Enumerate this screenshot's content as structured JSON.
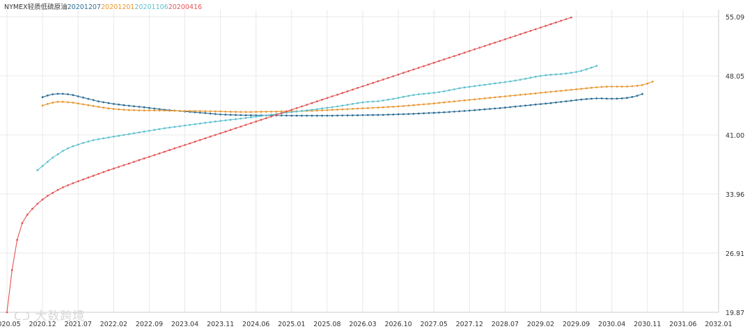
{
  "chart_data": {
    "type": "line",
    "title": "NYMEX轻质低硫原油",
    "ylim": [
      19.87,
      55.09
    ],
    "y_ticks": [
      "55.09",
      "48.05",
      "41.00",
      "33.96",
      "26.91",
      "19.87"
    ],
    "x_tick_labels": [
      "2020.05",
      "2020.12",
      "2021.07",
      "2022.02",
      "2022.09",
      "2023.04",
      "2023.11",
      "2024.06",
      "2025.01",
      "2025.08",
      "2026.03",
      "2026.10",
      "2027.05",
      "2027.12",
      "2028.07",
      "2029.02",
      "2029.09",
      "2030.04",
      "2030.11",
      "2031.06",
      "2032.01"
    ],
    "x_range": [
      0,
      140
    ],
    "grid": true,
    "legend_position": "top-left",
    "series": [
      {
        "name": "20201207",
        "color": "#2b6c94",
        "start_month": 7,
        "values": [
          45.5,
          45.7,
          45.85,
          45.9,
          45.9,
          45.85,
          45.75,
          45.6,
          45.45,
          45.3,
          45.15,
          45.0,
          44.9,
          44.8,
          44.7,
          44.62,
          44.55,
          44.48,
          44.42,
          44.36,
          44.3,
          44.22,
          44.15,
          44.08,
          44.0,
          43.95,
          43.9,
          43.85,
          43.8,
          43.75,
          43.7,
          43.65,
          43.6,
          43.55,
          43.5,
          43.45,
          43.42,
          43.4,
          43.38,
          43.36,
          43.35,
          43.35,
          43.34,
          43.34,
          43.33,
          43.33,
          43.32,
          43.32,
          43.31,
          43.3,
          43.3,
          43.3,
          43.3,
          43.3,
          43.3,
          43.3,
          43.3,
          43.3,
          43.31,
          43.32,
          43.33,
          43.34,
          43.35,
          43.36,
          43.37,
          43.38,
          43.39,
          43.4,
          43.42,
          43.44,
          43.46,
          43.48,
          43.5,
          43.52,
          43.55,
          43.58,
          43.61,
          43.64,
          43.67,
          43.7,
          43.74,
          43.78,
          43.82,
          43.86,
          43.9,
          43.95,
          44.0,
          44.05,
          44.1,
          44.15,
          44.2,
          44.26,
          44.32,
          44.38,
          44.44,
          44.5,
          44.56,
          44.62,
          44.68,
          44.74,
          44.8,
          44.87,
          44.94,
          45.01,
          45.08,
          45.15,
          45.22,
          45.28,
          45.32,
          45.35,
          45.35,
          45.33,
          45.32,
          45.33,
          45.36,
          45.42,
          45.53,
          45.68,
          45.88
        ]
      },
      {
        "name": "20201201",
        "color": "#e8962e",
        "start_month": 7,
        "values": [
          44.5,
          44.7,
          44.85,
          44.95,
          44.95,
          44.9,
          44.85,
          44.75,
          44.65,
          44.55,
          44.45,
          44.35,
          44.25,
          44.17,
          44.1,
          44.05,
          44.0,
          43.97,
          43.95,
          43.93,
          43.92,
          43.92,
          43.92,
          43.91,
          43.9,
          43.89,
          43.88,
          43.87,
          43.86,
          43.85,
          43.85,
          43.84,
          43.83,
          43.82,
          43.81,
          43.8,
          43.78,
          43.76,
          43.75,
          43.74,
          43.74,
          43.74,
          43.75,
          43.76,
          43.77,
          43.78,
          43.79,
          43.8,
          43.81,
          43.82,
          43.83,
          43.84,
          43.86,
          43.88,
          43.9,
          43.93,
          43.96,
          43.99,
          44.02,
          44.05,
          44.08,
          44.11,
          44.14,
          44.17,
          44.2,
          44.23,
          44.26,
          44.29,
          44.33,
          44.37,
          44.41,
          44.45,
          44.5,
          44.55,
          44.6,
          44.65,
          44.7,
          44.76,
          44.82,
          44.88,
          44.94,
          45.0,
          45.06,
          45.12,
          45.18,
          45.24,
          45.3,
          45.36,
          45.42,
          45.48,
          45.54,
          45.6,
          45.66,
          45.72,
          45.78,
          45.84,
          45.9,
          45.96,
          46.02,
          46.08,
          46.14,
          46.2,
          46.26,
          46.32,
          46.38,
          46.44,
          46.5,
          46.56,
          46.62,
          46.68,
          46.72,
          46.75,
          46.76,
          46.76,
          46.76,
          46.77,
          46.8,
          46.86,
          46.96,
          47.12,
          47.35
        ]
      },
      {
        "name": "20201106",
        "color": "#5bc0cd",
        "start_month": 6,
        "values": [
          36.8,
          37.3,
          37.8,
          38.3,
          38.7,
          39.1,
          39.4,
          39.65,
          39.85,
          40.05,
          40.22,
          40.38,
          40.5,
          40.6,
          40.7,
          40.8,
          40.9,
          41.0,
          41.1,
          41.2,
          41.3,
          41.4,
          41.5,
          41.6,
          41.7,
          41.8,
          41.88,
          41.96,
          42.04,
          42.12,
          42.2,
          42.28,
          42.36,
          42.44,
          42.52,
          42.6,
          42.67,
          42.74,
          42.81,
          42.88,
          42.95,
          43.02,
          43.1,
          43.18,
          43.26,
          43.34,
          43.42,
          43.5,
          43.58,
          43.65,
          43.72,
          43.79,
          43.86,
          43.93,
          44.0,
          44.08,
          44.16,
          44.24,
          44.32,
          44.4,
          44.5,
          44.6,
          44.7,
          44.8,
          44.88,
          44.94,
          44.98,
          45.02,
          45.1,
          45.2,
          45.3,
          45.42,
          45.54,
          45.66,
          45.76,
          45.84,
          45.9,
          45.96,
          46.02,
          46.1,
          46.2,
          46.32,
          46.44,
          46.56,
          46.66,
          46.74,
          46.82,
          46.9,
          46.98,
          47.06,
          47.14,
          47.22,
          47.3,
          47.38,
          47.48,
          47.58,
          47.7,
          47.82,
          47.94,
          48.04,
          48.12,
          48.18,
          48.22,
          48.26,
          48.32,
          48.4,
          48.5,
          48.64,
          48.82,
          49.02,
          49.24
        ]
      },
      {
        "name": "20200416",
        "color": "#e35454",
        "start_month": 0,
        "values": [
          19.87,
          24.9,
          28.5,
          30.5,
          31.5,
          32.2,
          32.8,
          33.3,
          33.75,
          34.1,
          34.45,
          34.75,
          35.0,
          35.25,
          35.48,
          35.7,
          35.92,
          36.14,
          36.36,
          36.58,
          36.8,
          37.0,
          37.2,
          37.4,
          37.6,
          37.8,
          38.0,
          38.2,
          38.4,
          38.6,
          38.8,
          39.0,
          39.2,
          39.4,
          39.6,
          39.8,
          40.0,
          40.2,
          40.4,
          40.6,
          40.8,
          41.0,
          41.2,
          41.4,
          41.6,
          41.8,
          42.0,
          42.2,
          42.4,
          42.6,
          42.8,
          43.0,
          43.2,
          43.4,
          43.6,
          43.8,
          44.0,
          44.2,
          44.4,
          44.6,
          44.8,
          45.0,
          45.2,
          45.4,
          45.6,
          45.8,
          46.0,
          46.2,
          46.4,
          46.6,
          46.8,
          47.0,
          47.2,
          47.4,
          47.6,
          47.8,
          48.0,
          48.2,
          48.4,
          48.6,
          48.8,
          49.0,
          49.2,
          49.4,
          49.6,
          49.8,
          50.0,
          50.2,
          50.4,
          50.6,
          50.8,
          51.0,
          51.2,
          51.4,
          51.6,
          51.8,
          52.0,
          52.2,
          52.4,
          52.6,
          52.8,
          53.0,
          53.2,
          53.4,
          53.6,
          53.8,
          54.0,
          54.2,
          54.4,
          54.6,
          54.8,
          55.0
        ]
      }
    ]
  },
  "watermark_text": "大数跨境",
  "colors": {
    "title": "#333333",
    "axis_text": "#333333",
    "grid": "#e8e8e8",
    "axis": "#cccccc"
  }
}
